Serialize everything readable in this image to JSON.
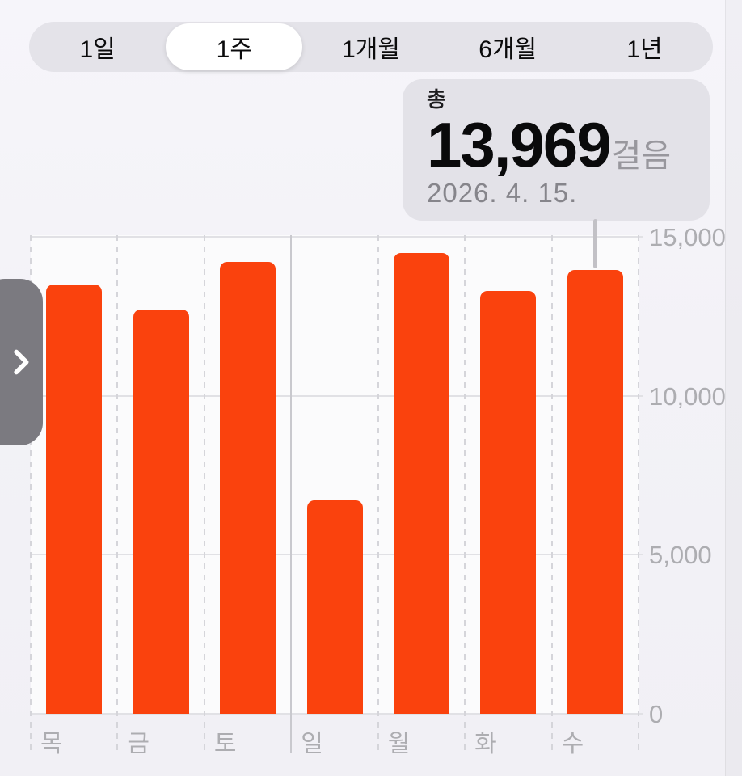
{
  "time_range_selector": {
    "options": [
      {
        "id": "range-1day",
        "label": "1일",
        "selected": false
      },
      {
        "id": "range-1week",
        "label": "1주",
        "selected": true
      },
      {
        "id": "range-1month",
        "label": "1개월",
        "selected": false
      },
      {
        "id": "range-6months",
        "label": "6개월",
        "selected": false
      },
      {
        "id": "range-1year",
        "label": "1년",
        "selected": false
      }
    ]
  },
  "callout": {
    "label": "총",
    "value": "13,969",
    "unit": "걸음",
    "date": "2026. 4. 15."
  },
  "navigation": {
    "scroll_forward_icon": "chevron-right"
  },
  "chart_data": {
    "type": "bar",
    "title": "",
    "categories": [
      "목",
      "금",
      "토",
      "일",
      "월",
      "화",
      "수"
    ],
    "category_ids": [
      "thu",
      "fri",
      "sat",
      "sun",
      "mon",
      "tue",
      "wed"
    ],
    "values": [
      13500,
      12700,
      14200,
      6700,
      14500,
      13300,
      13969
    ],
    "selected_category": "수",
    "selected_value": 13969,
    "unit": "걸음",
    "xlabel": "",
    "ylabel": "",
    "ylim": [
      0,
      15000
    ],
    "yticks": [
      0,
      5000,
      10000,
      15000
    ],
    "ytick_labels": [
      "0",
      "5,000",
      "10,000",
      "15,000"
    ],
    "grid": true,
    "legend": false,
    "solid_divider_boundary_index": 3,
    "bar_color": "#FA420D"
  },
  "colors": {
    "accent_bar": "#FA420D",
    "segmented_bg": "#E4E3E9",
    "selected_pill": "#FFFFFF",
    "callout_bg": "#E3E2E8",
    "pointer_line": "#C2C1C6",
    "axis_text": "#ADADB1",
    "chevron_bg": "#7B7A80"
  }
}
